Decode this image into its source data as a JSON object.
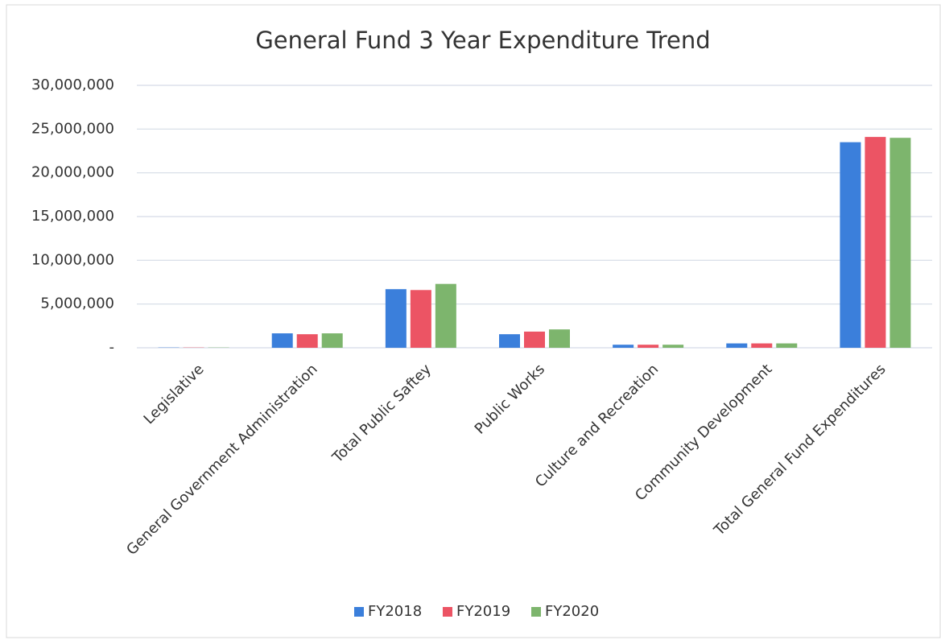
{
  "chart_data": {
    "type": "bar",
    "title": "General Fund 3 Year Expenditure Trend",
    "categories": [
      "Legislative",
      "General Government Administration",
      "Total Public Saftey",
      "Public Works",
      "Culture and Recreation",
      "Community Development",
      "Total General Fund Expenditures"
    ],
    "series": [
      {
        "name": "FY2018",
        "color": "#3b7fdb",
        "values": [
          30000,
          1650000,
          6700000,
          1550000,
          350000,
          500000,
          23500000
        ]
      },
      {
        "name": "FY2019",
        "color": "#ec5464",
        "values": [
          30000,
          1550000,
          6600000,
          1850000,
          350000,
          500000,
          24100000
        ]
      },
      {
        "name": "FY2020",
        "color": "#7db56d",
        "values": [
          30000,
          1650000,
          7300000,
          2100000,
          350000,
          500000,
          24000000
        ]
      }
    ],
    "ylim": [
      0,
      30000000
    ],
    "yticks": [
      {
        "value": 0,
        "label": "-"
      },
      {
        "value": 5000000,
        "label": "5,000,000"
      },
      {
        "value": 10000000,
        "label": "10,000,000"
      },
      {
        "value": 15000000,
        "label": "15,000,000"
      },
      {
        "value": 20000000,
        "label": "20,000,000"
      },
      {
        "value": 25000000,
        "label": "25,000,000"
      },
      {
        "value": 30000000,
        "label": "30,000,000"
      }
    ],
    "grid": true,
    "legend": "bottom"
  }
}
